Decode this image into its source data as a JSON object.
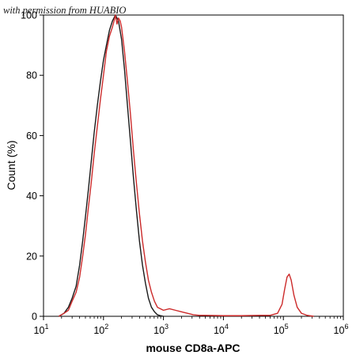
{
  "watermark": "with permission from HUABIO",
  "chart_data": {
    "type": "line",
    "xlabel": "mouse CD8a-APC",
    "ylabel": "Count  (%)",
    "x_scale": "log",
    "xlim": [
      10,
      1000000
    ],
    "ylim": [
      0,
      100
    ],
    "x_ticks": [
      {
        "base": "10",
        "exp": "1"
      },
      {
        "base": "10",
        "exp": "2"
      },
      {
        "base": "10",
        "exp": "3"
      },
      {
        "base": "10",
        "exp": "4"
      },
      {
        "base": "10",
        "exp": "5"
      },
      {
        "base": "10",
        "exp": "6"
      }
    ],
    "y_ticks": [
      "0",
      "20",
      "40",
      "60",
      "80",
      "100"
    ],
    "grid": false,
    "legend": "none",
    "series": [
      {
        "color": "#1a1a1a",
        "points": [
          [
            18,
            0
          ],
          [
            22,
            1
          ],
          [
            26,
            3
          ],
          [
            30,
            6
          ],
          [
            35,
            10
          ],
          [
            40,
            17
          ],
          [
            45,
            25
          ],
          [
            50,
            33
          ],
          [
            56,
            42
          ],
          [
            63,
            52
          ],
          [
            70,
            61
          ],
          [
            79,
            70
          ],
          [
            89,
            78
          ],
          [
            100,
            85
          ],
          [
            112,
            90
          ],
          [
            126,
            95
          ],
          [
            141,
            98
          ],
          [
            158,
            100
          ],
          [
            178,
            98
          ],
          [
            200,
            92
          ],
          [
            224,
            82
          ],
          [
            251,
            70
          ],
          [
            282,
            58
          ],
          [
            316,
            46
          ],
          [
            355,
            35
          ],
          [
            398,
            25
          ],
          [
            447,
            17
          ],
          [
            501,
            11
          ],
          [
            562,
            6
          ],
          [
            631,
            3
          ],
          [
            708,
            1.5
          ],
          [
            794,
            0.5
          ],
          [
            891,
            0.2
          ],
          [
            1000,
            0
          ]
        ]
      },
      {
        "color": "#cc2a2a",
        "points": [
          [
            18,
            0
          ],
          [
            22,
            1
          ],
          [
            26,
            2
          ],
          [
            30,
            5
          ],
          [
            35,
            8
          ],
          [
            40,
            13
          ],
          [
            45,
            20
          ],
          [
            50,
            27
          ],
          [
            56,
            36
          ],
          [
            63,
            45
          ],
          [
            70,
            54
          ],
          [
            79,
            63
          ],
          [
            89,
            72
          ],
          [
            100,
            80
          ],
          [
            112,
            88
          ],
          [
            126,
            93
          ],
          [
            141,
            96
          ],
          [
            150,
            98
          ],
          [
            158,
            100
          ],
          [
            168,
            97
          ],
          [
            178,
            99
          ],
          [
            190,
            98
          ],
          [
            200,
            96
          ],
          [
            224,
            88
          ],
          [
            251,
            78
          ],
          [
            282,
            67
          ],
          [
            316,
            55
          ],
          [
            355,
            44
          ],
          [
            398,
            34
          ],
          [
            447,
            25
          ],
          [
            501,
            18
          ],
          [
            562,
            12
          ],
          [
            631,
            8
          ],
          [
            708,
            5
          ],
          [
            794,
            3
          ],
          [
            891,
            2.5
          ],
          [
            1000,
            2
          ],
          [
            1259,
            2.5
          ],
          [
            1585,
            2
          ],
          [
            1995,
            1.5
          ],
          [
            2512,
            1
          ],
          [
            3162,
            0.5
          ],
          [
            3981,
            0.3
          ],
          [
            5012,
            0.3
          ],
          [
            10000,
            0.2
          ],
          [
            20000,
            0.2
          ],
          [
            40000,
            0.3
          ],
          [
            60000,
            0.3
          ],
          [
            80000,
            1
          ],
          [
            95000,
            4
          ],
          [
            105000,
            9
          ],
          [
            115000,
            13
          ],
          [
            125000,
            14
          ],
          [
            135000,
            12
          ],
          [
            150000,
            7
          ],
          [
            170000,
            3
          ],
          [
            200000,
            1
          ],
          [
            250000,
            0.3
          ],
          [
            320000,
            0
          ]
        ]
      }
    ]
  }
}
